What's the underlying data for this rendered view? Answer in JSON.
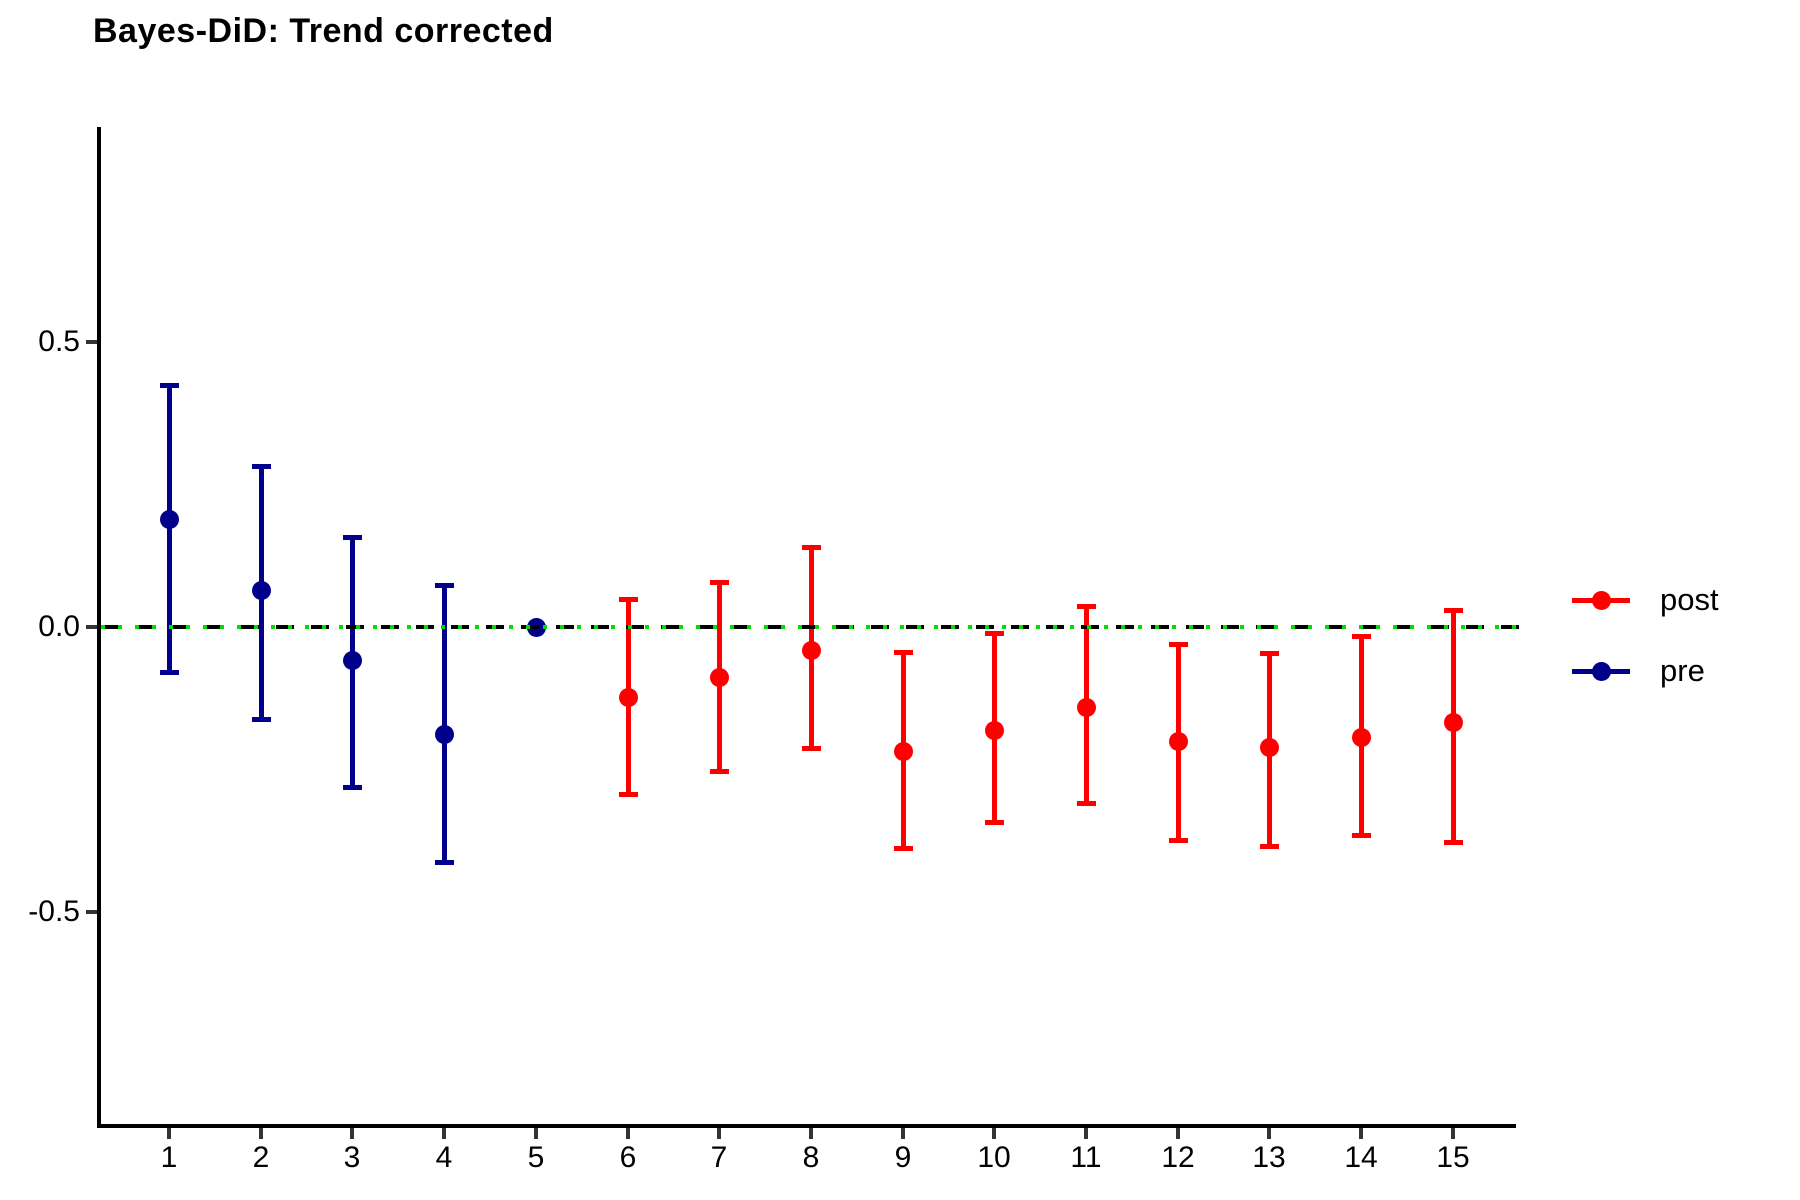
{
  "title": "Bayes-DiD: Trend corrected",
  "legend": {
    "position": "right",
    "items": [
      {
        "label": "post",
        "color": "#FF0000"
      },
      {
        "label": "pre",
        "color": "#00008B"
      }
    ]
  },
  "axes": {
    "x": {
      "tick_labels": [
        "1",
        "2",
        "3",
        "4",
        "5",
        "6",
        "7",
        "8",
        "9",
        "10",
        "11",
        "12",
        "13",
        "14",
        "15"
      ]
    },
    "y": {
      "ticks": [
        {
          "label": "0.5",
          "value": 0.5
        },
        {
          "label": "0.0",
          "value": 0.0
        },
        {
          "label": "-0.5",
          "value": -0.5
        }
      ]
    }
  },
  "zero_line": {
    "value": 0,
    "dash_color": "#000000",
    "dot_color": "#00DD00"
  },
  "chart_data": {
    "type": "pointrange",
    "title": "Bayes-DiD: Trend corrected",
    "xlabel": "",
    "ylabel": "",
    "x_ticks": [
      1,
      2,
      3,
      4,
      5,
      6,
      7,
      8,
      9,
      10,
      11,
      12,
      13,
      14,
      15
    ],
    "ylim": [
      -0.87,
      0.9
    ],
    "y_tick_values": [
      0.5,
      0.0,
      -0.5
    ],
    "grid": false,
    "legend_position": "right",
    "reference_line": {
      "y": 0,
      "styles": [
        "black-dashed",
        "green-dotted"
      ]
    },
    "series": [
      {
        "name": "pre",
        "color": "#00008B",
        "points": [
          {
            "x": 1,
            "est": 0.19,
            "lo": -0.08,
            "hi": 0.425
          },
          {
            "x": 2,
            "est": 0.065,
            "lo": -0.163,
            "hi": 0.283
          },
          {
            "x": 3,
            "est": -0.058,
            "lo": -0.283,
            "hi": 0.158
          },
          {
            "x": 4,
            "est": -0.188,
            "lo": -0.414,
            "hi": 0.074
          },
          {
            "x": 5,
            "est": 0.0,
            "lo": 0.0,
            "hi": 0.0
          }
        ]
      },
      {
        "name": "post",
        "color": "#FF0000",
        "points": [
          {
            "x": 6,
            "est": -0.123,
            "lo": -0.295,
            "hi": 0.049
          },
          {
            "x": 7,
            "est": -0.088,
            "lo": -0.254,
            "hi": 0.079
          },
          {
            "x": 8,
            "est": -0.04,
            "lo": -0.214,
            "hi": 0.14
          },
          {
            "x": 9,
            "est": -0.218,
            "lo": -0.39,
            "hi": -0.044
          },
          {
            "x": 10,
            "est": -0.181,
            "lo": -0.344,
            "hi": -0.01
          },
          {
            "x": 11,
            "est": -0.14,
            "lo": -0.311,
            "hi": 0.037
          },
          {
            "x": 12,
            "est": -0.2,
            "lo": -0.375,
            "hi": -0.03
          },
          {
            "x": 13,
            "est": -0.211,
            "lo": -0.386,
            "hi": -0.046
          },
          {
            "x": 14,
            "est": -0.193,
            "lo": -0.367,
            "hi": -0.016
          },
          {
            "x": 15,
            "est": -0.167,
            "lo": -0.379,
            "hi": 0.03
          }
        ]
      }
    ]
  }
}
